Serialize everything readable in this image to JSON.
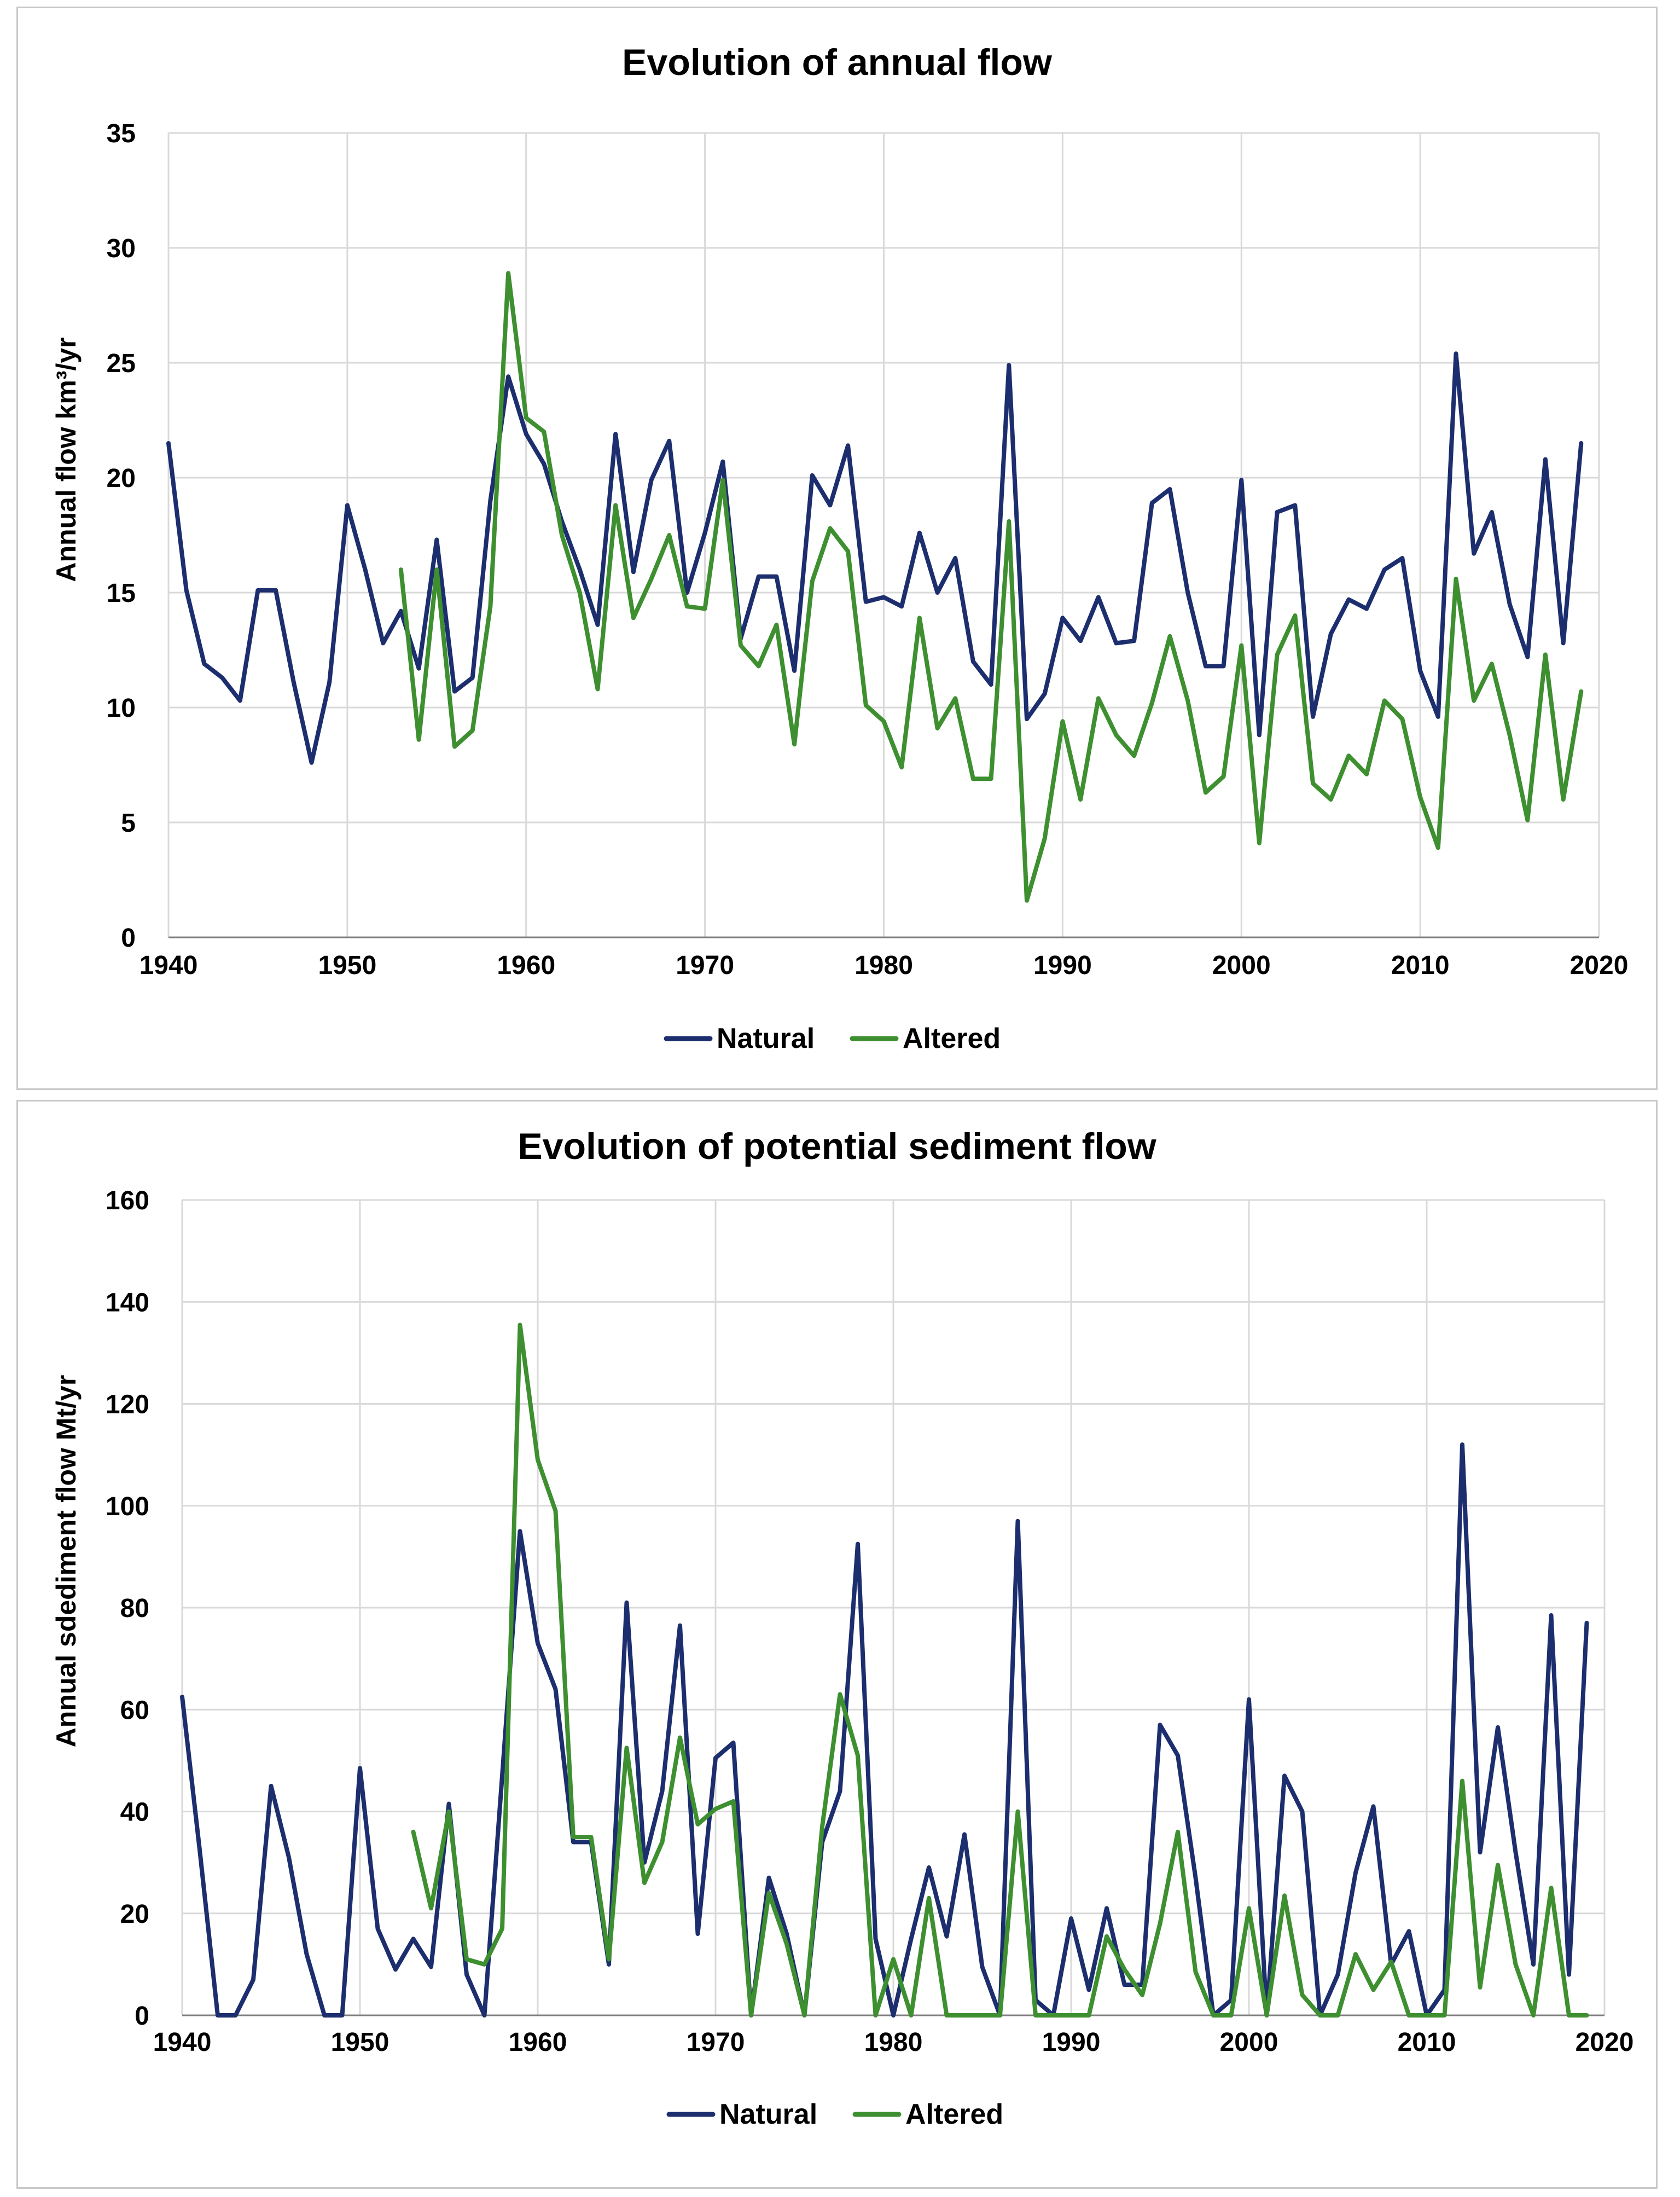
{
  "colors": {
    "natural": "#1c2e6e",
    "altered": "#3e8f30",
    "grid": "#d9d9d9",
    "border": "#c8c8c8"
  },
  "chart_data": [
    {
      "type": "line",
      "title": "Evolution of annual flow",
      "xlabel": "",
      "ylabel": "Annual flow km³/yr",
      "xlim": [
        1940,
        2020
      ],
      "ylim": [
        0,
        35
      ],
      "xticks": [
        "1940",
        "1950",
        "1960",
        "1970",
        "1980",
        "1990",
        "2000",
        "2010",
        "2020"
      ],
      "yticks": [
        "0",
        "5",
        "10",
        "15",
        "20",
        "25",
        "30",
        "35"
      ],
      "grid": true,
      "legend_position": "bottom",
      "series": [
        {
          "name": "Natural",
          "color": "#1c2e6e",
          "x": [
            1940,
            1941,
            1942,
            1943,
            1944,
            1945,
            1946,
            1947,
            1948,
            1949,
            1950,
            1951,
            1952,
            1953,
            1954,
            1955,
            1956,
            1957,
            1958,
            1959,
            1960,
            1961,
            1962,
            1963,
            1964,
            1965,
            1966,
            1967,
            1968,
            1969,
            1970,
            1971,
            1972,
            1973,
            1974,
            1975,
            1976,
            1977,
            1978,
            1979,
            1980,
            1981,
            1982,
            1983,
            1984,
            1985,
            1986,
            1987,
            1988,
            1989,
            1990,
            1991,
            1992,
            1993,
            1994,
            1995,
            1996,
            1997,
            1998,
            1999,
            2000,
            2001,
            2002,
            2003,
            2004,
            2005,
            2006,
            2007,
            2008,
            2009,
            2010,
            2011,
            2012,
            2013,
            2014,
            2015,
            2016,
            2017,
            2018,
            2019
          ],
          "y": [
            21.5,
            15.1,
            11.9,
            11.3,
            10.3,
            15.1,
            15.1,
            11.1,
            7.6,
            11.1,
            18.8,
            16.0,
            12.8,
            14.2,
            11.7,
            17.3,
            10.7,
            11.3,
            19.0,
            24.4,
            21.9,
            20.6,
            18.1,
            16.0,
            13.6,
            21.9,
            15.9,
            19.9,
            21.6,
            15.0,
            17.6,
            20.7,
            13.0,
            15.7,
            15.7,
            11.6,
            20.1,
            18.8,
            21.4,
            14.6,
            14.8,
            14.4,
            17.6,
            15.0,
            16.5,
            12.0,
            11.0,
            24.9,
            9.5,
            10.6,
            13.9,
            12.9,
            14.8,
            12.8,
            12.9,
            18.9,
            19.5,
            15.0,
            11.8,
            11.8,
            19.9,
            8.8,
            18.5,
            18.8,
            9.6,
            13.2,
            14.7,
            14.3,
            16.0,
            16.5,
            11.6,
            9.6,
            25.4,
            16.7,
            18.5,
            14.5,
            12.2,
            20.8,
            12.8,
            21.5
          ]
        },
        {
          "name": "Altered",
          "color": "#3e8f30",
          "x": [
            1953,
            1954,
            1955,
            1956,
            1957,
            1958,
            1959,
            1960,
            1961,
            1962,
            1963,
            1964,
            1965,
            1966,
            1967,
            1968,
            1969,
            1970,
            1971,
            1972,
            1973,
            1974,
            1975,
            1976,
            1977,
            1978,
            1979,
            1980,
            1981,
            1982,
            1983,
            1984,
            1985,
            1986,
            1987,
            1988,
            1989,
            1990,
            1991,
            1992,
            1993,
            1994,
            1995,
            1996,
            1997,
            1998,
            1999,
            2000,
            2001,
            2002,
            2003,
            2004,
            2005,
            2006,
            2007,
            2008,
            2009,
            2010,
            2011,
            2012,
            2013,
            2014,
            2015,
            2016,
            2017,
            2018,
            2019
          ],
          "y": [
            16.0,
            8.6,
            16.0,
            8.3,
            9.0,
            14.4,
            28.9,
            22.6,
            22.0,
            17.5,
            15.0,
            10.8,
            18.8,
            13.9,
            15.6,
            17.5,
            14.4,
            14.3,
            19.9,
            12.7,
            11.8,
            13.6,
            8.4,
            15.5,
            17.8,
            16.8,
            10.1,
            9.4,
            7.4,
            13.9,
            9.1,
            10.4,
            6.9,
            6.9,
            18.1,
            1.6,
            4.3,
            9.4,
            6.0,
            10.4,
            8.8,
            7.9,
            10.2,
            13.1,
            10.3,
            6.3,
            7.0,
            12.7,
            4.1,
            12.3,
            14.0,
            6.7,
            6.0,
            7.9,
            7.1,
            10.3,
            9.5,
            6.1,
            3.9,
            15.6,
            10.3,
            11.9,
            8.8,
            5.1,
            12.3,
            6.0,
            10.7
          ]
        }
      ]
    },
    {
      "type": "line",
      "title": "Evolution of potential sediment flow",
      "xlabel": "",
      "ylabel": "Annual sdediment flow Mt/yr",
      "xlim": [
        1940,
        2020
      ],
      "ylim": [
        0,
        160
      ],
      "xticks": [
        "1940",
        "1950",
        "1960",
        "1970",
        "1980",
        "1990",
        "2000",
        "2010",
        "2020"
      ],
      "yticks": [
        "0",
        "20",
        "40",
        "60",
        "80",
        "100",
        "120",
        "140",
        "160"
      ],
      "grid": true,
      "legend_position": "bottom",
      "series": [
        {
          "name": "Natural",
          "color": "#1c2e6e",
          "x": [
            1940,
            1941,
            1942,
            1943,
            1944,
            1945,
            1946,
            1947,
            1948,
            1949,
            1950,
            1951,
            1952,
            1953,
            1954,
            1955,
            1956,
            1957,
            1958,
            1959,
            1960,
            1961,
            1962,
            1963,
            1964,
            1965,
            1966,
            1967,
            1968,
            1969,
            1970,
            1971,
            1972,
            1973,
            1974,
            1975,
            1976,
            1977,
            1978,
            1979,
            1980,
            1981,
            1982,
            1983,
            1984,
            1985,
            1986,
            1987,
            1988,
            1989,
            1990,
            1991,
            1992,
            1993,
            1994,
            1995,
            1996,
            1997,
            1998,
            1999,
            2000,
            2001,
            2002,
            2003,
            2004,
            2005,
            2006,
            2007,
            2008,
            2009,
            2010,
            2011,
            2012,
            2013,
            2014,
            2015,
            2016,
            2017,
            2018,
            2019
          ],
          "y": [
            62.5,
            32.0,
            0.0,
            0.0,
            7.0,
            45.0,
            31.0,
            12.0,
            0.0,
            0.0,
            48.5,
            17.0,
            9.0,
            15.0,
            9.5,
            41.5,
            8.0,
            0.0,
            47.0,
            95.0,
            73.0,
            64.0,
            34.0,
            34.0,
            10.0,
            81.0,
            30.0,
            44.0,
            76.5,
            16.0,
            50.5,
            53.5,
            0.0,
            27.0,
            16.0,
            0.0,
            34.0,
            44.0,
            92.5,
            15.0,
            0.0,
            15.0,
            29.0,
            15.5,
            35.5,
            9.5,
            0.0,
            97.0,
            3.0,
            0.0,
            19.0,
            5.0,
            21.0,
            6.0,
            6.0,
            57.0,
            51.0,
            27.0,
            0.0,
            3.0,
            62.0,
            0.0,
            47.0,
            40.0,
            0.0,
            8.0,
            28.0,
            41.0,
            10.0,
            16.5,
            0.0,
            5.0,
            112.0,
            32.0,
            56.5,
            32.0,
            10.0,
            78.5,
            8.0,
            77.0
          ]
        },
        {
          "name": "Altered",
          "color": "#3e8f30",
          "x": [
            1953,
            1954,
            1955,
            1956,
            1957,
            1958,
            1959,
            1960,
            1961,
            1962,
            1963,
            1964,
            1965,
            1966,
            1967,
            1968,
            1969,
            1970,
            1971,
            1972,
            1973,
            1974,
            1975,
            1976,
            1977,
            1978,
            1979,
            1980,
            1981,
            1982,
            1983,
            1984,
            1985,
            1986,
            1987,
            1988,
            1989,
            1990,
            1991,
            1992,
            1993,
            1994,
            1995,
            1996,
            1997,
            1998,
            1999,
            2000,
            2001,
            2002,
            2003,
            2004,
            2005,
            2006,
            2007,
            2008,
            2009,
            2010,
            2011,
            2012,
            2013,
            2014,
            2015,
            2016,
            2017,
            2018,
            2019
          ],
          "y": [
            36.0,
            21.0,
            40.0,
            11.0,
            10.0,
            17.0,
            135.5,
            109.0,
            99.0,
            35.0,
            35.0,
            11.0,
            52.5,
            26.0,
            34.0,
            54.5,
            37.5,
            40.5,
            42.0,
            0.0,
            24.0,
            14.0,
            0.0,
            37.0,
            63.0,
            51.0,
            0.0,
            11.0,
            0.0,
            23.0,
            0.0,
            0.0,
            0.0,
            0.0,
            40.0,
            0.0,
            0.0,
            0.0,
            0.0,
            15.5,
            9.0,
            4.0,
            18.0,
            36.0,
            8.5,
            0.0,
            0.0,
            21.0,
            0.0,
            23.5,
            4.0,
            0.0,
            0.0,
            12.0,
            5.0,
            10.5,
            0.0,
            0.0,
            0.0,
            46.0,
            5.5,
            29.5,
            10.0,
            0.0,
            25.0,
            0.0,
            0.0
          ]
        }
      ]
    }
  ]
}
